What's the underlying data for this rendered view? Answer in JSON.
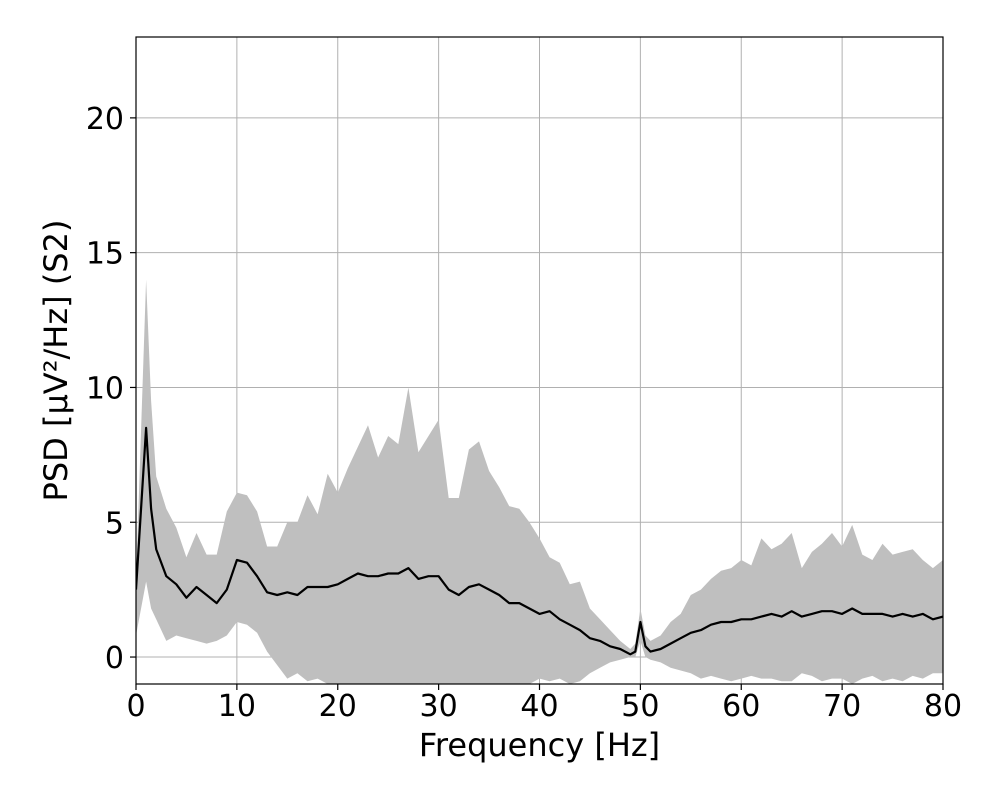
{
  "chart_data": {
    "type": "line",
    "xlabel": "Frequency [Hz]",
    "ylabel": "PSD [μV²/Hz] (S2)",
    "xlim": [
      0,
      80
    ],
    "ylim": [
      -1,
      23
    ],
    "x_ticks": [
      0,
      10,
      20,
      30,
      40,
      50,
      60,
      70,
      80
    ],
    "y_ticks": [
      0,
      5,
      10,
      15,
      20
    ],
    "grid": true,
    "colors": {
      "line": "#000000",
      "band": "#bfbfbf",
      "grid": "#b0b0b0"
    },
    "series": [
      {
        "x": [
          0,
          1,
          1.5,
          2,
          3,
          4,
          5,
          6,
          7,
          8,
          9,
          10,
          11,
          12,
          13,
          14,
          15,
          16,
          17,
          18,
          19,
          20,
          21,
          22,
          23,
          24,
          25,
          26,
          27,
          28,
          29,
          30,
          31,
          32,
          33,
          34,
          35,
          36,
          37,
          38,
          39,
          40,
          41,
          42,
          43,
          44,
          45,
          46,
          47,
          48,
          49,
          49.5,
          50,
          50.5,
          51,
          52,
          53,
          54,
          55,
          56,
          57,
          58,
          59,
          60,
          61,
          62,
          63,
          64,
          65,
          66,
          67,
          68,
          69,
          70,
          71,
          72,
          73,
          74,
          75,
          76,
          77,
          78,
          79,
          80
        ],
        "y": [
          2.5,
          8.5,
          5.5,
          4.0,
          3.0,
          2.7,
          2.2,
          2.6,
          2.3,
          2.0,
          2.5,
          3.6,
          3.5,
          3.0,
          2.4,
          2.3,
          2.4,
          2.3,
          2.6,
          2.6,
          2.6,
          2.7,
          2.9,
          3.1,
          3.0,
          3.0,
          3.1,
          3.1,
          3.3,
          2.9,
          3.0,
          3.0,
          2.5,
          2.3,
          2.6,
          2.7,
          2.5,
          2.3,
          2.0,
          2.0,
          1.8,
          1.6,
          1.7,
          1.4,
          1.2,
          1.0,
          0.7,
          0.6,
          0.4,
          0.3,
          0.1,
          0.2,
          1.3,
          0.4,
          0.2,
          0.3,
          0.5,
          0.7,
          0.9,
          1.0,
          1.2,
          1.3,
          1.3,
          1.4,
          1.4,
          1.5,
          1.6,
          1.5,
          1.7,
          1.5,
          1.6,
          1.7,
          1.7,
          1.6,
          1.8,
          1.6,
          1.6,
          1.6,
          1.5,
          1.6,
          1.5,
          1.6,
          1.4,
          1.5
        ],
        "upper": [
          2.8,
          14.0,
          9.5,
          6.7,
          5.5,
          4.8,
          3.7,
          4.6,
          3.8,
          3.8,
          5.4,
          6.1,
          6.0,
          5.4,
          4.1,
          4.1,
          5.0,
          5.0,
          6.0,
          5.3,
          6.8,
          6.1,
          7.0,
          7.8,
          8.6,
          7.4,
          8.2,
          7.9,
          10.0,
          7.6,
          8.2,
          8.8,
          5.9,
          5.9,
          7.7,
          8.0,
          6.9,
          6.3,
          5.6,
          5.5,
          5.0,
          4.4,
          3.7,
          3.5,
          2.7,
          2.8,
          1.8,
          1.4,
          1.0,
          0.6,
          0.3,
          0.5,
          1.8,
          0.8,
          0.6,
          0.8,
          1.3,
          1.6,
          2.3,
          2.5,
          2.9,
          3.2,
          3.3,
          3.6,
          3.4,
          4.4,
          4.0,
          4.2,
          4.6,
          3.3,
          3.9,
          4.2,
          4.6,
          4.1,
          4.9,
          3.8,
          3.6,
          4.2,
          3.8,
          3.9,
          4.0,
          3.6,
          3.3,
          3.6
        ],
        "lower": [
          0.8,
          2.8,
          1.8,
          1.4,
          0.6,
          0.8,
          0.7,
          0.6,
          0.5,
          0.6,
          0.8,
          1.3,
          1.2,
          0.9,
          0.2,
          -0.3,
          -0.8,
          -0.6,
          -0.9,
          -0.8,
          -1.0,
          -1.0,
          -1.0,
          -1.0,
          -1.0,
          -1.0,
          -1.0,
          -1.0,
          -1.0,
          -1.0,
          -1.0,
          -1.0,
          -1.0,
          -1.0,
          -1.0,
          -1.0,
          -1.0,
          -1.0,
          -1.0,
          -1.0,
          -1.0,
          -0.8,
          -0.9,
          -0.8,
          -1.0,
          -0.9,
          -0.6,
          -0.4,
          -0.2,
          -0.1,
          0.0,
          0.0,
          0.6,
          0.0,
          -0.1,
          -0.2,
          -0.4,
          -0.5,
          -0.6,
          -0.8,
          -0.7,
          -0.8,
          -0.9,
          -0.8,
          -0.7,
          -0.8,
          -0.8,
          -0.9,
          -0.9,
          -0.6,
          -0.7,
          -0.9,
          -0.8,
          -0.8,
          -1.0,
          -0.8,
          -0.7,
          -0.9,
          -0.8,
          -0.9,
          -0.7,
          -0.8,
          -0.6,
          -0.6
        ]
      }
    ]
  }
}
